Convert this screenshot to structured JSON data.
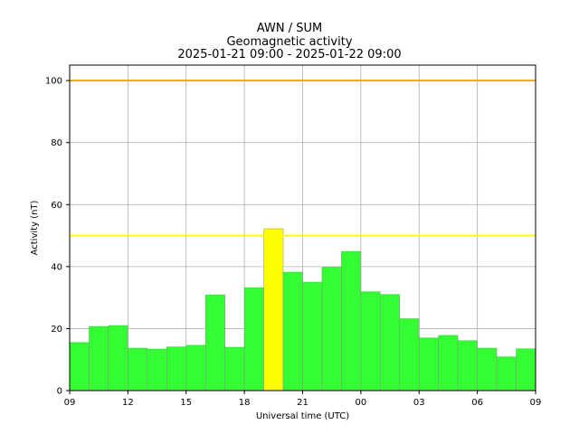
{
  "chart_data": {
    "type": "bar",
    "title_lines": [
      "AWN / SUM",
      "Geomagnetic activity",
      "2025-01-21 09:00 - 2025-01-22 09:00"
    ],
    "xlabel": "Universal time (UTC)",
    "ylabel": "Activity (nT)",
    "ylim": [
      0,
      105
    ],
    "x_ticks": [
      "09",
      "12",
      "15",
      "18",
      "21",
      "00",
      "03",
      "06",
      "09"
    ],
    "y_ticks": [
      0,
      20,
      40,
      60,
      80,
      100
    ],
    "grid": true,
    "thresholds": [
      {
        "value": 100,
        "color": "#ffa500"
      },
      {
        "value": 50,
        "color": "#ffff00"
      }
    ],
    "series": [
      {
        "hour_values": [
          15.5,
          20.7,
          21.0,
          13.7,
          13.4,
          14.1,
          14.6,
          30.9,
          14.0,
          33.2,
          52.2,
          38.2,
          35.0,
          39.8,
          44.9,
          31.9,
          31.0,
          23.2,
          17.0,
          17.8,
          16.1,
          13.7,
          10.9,
          13.5
        ],
        "colors": [
          "#33ff33",
          "#33ff33",
          "#33ff33",
          "#33ff33",
          "#33ff33",
          "#33ff33",
          "#33ff33",
          "#33ff33",
          "#33ff33",
          "#33ff33",
          "#ffff00",
          "#33ff33",
          "#33ff33",
          "#33ff33",
          "#33ff33",
          "#33ff33",
          "#33ff33",
          "#33ff33",
          "#33ff33",
          "#33ff33",
          "#33ff33",
          "#33ff33",
          "#33ff33",
          "#33ff33"
        ]
      }
    ]
  }
}
